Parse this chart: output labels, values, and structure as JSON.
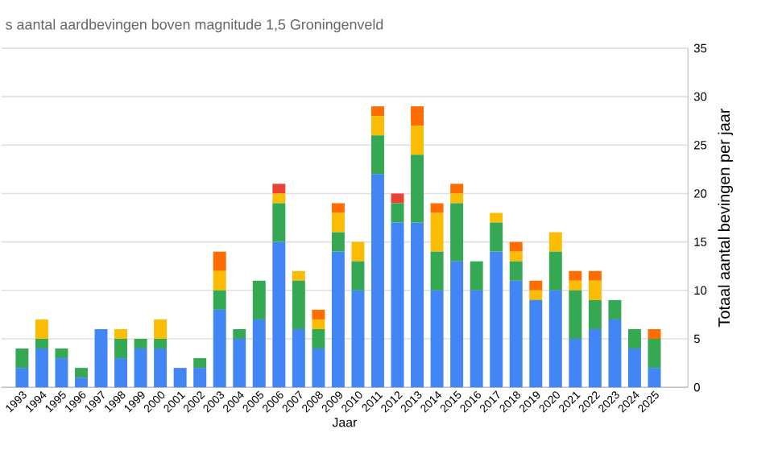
{
  "chart_data": {
    "type": "bar",
    "title": "s aantal aardbevingen boven magnitude 1,5 Groningenveld",
    "xlabel": "Jaar",
    "ylabel": "Totaal aantal bevingen per jaar",
    "categories": [
      "1993",
      "1994",
      "1995",
      "1996",
      "1997",
      "1998",
      "1999",
      "2000",
      "2001",
      "2002",
      "2003",
      "2004",
      "2005",
      "2006",
      "2007",
      "2008",
      "2009",
      "2010",
      "2011",
      "2012",
      "2013",
      "2014",
      "2015",
      "2016",
      "2017",
      "2018",
      "2019",
      "2020",
      "2021",
      "2022",
      "2023",
      "2024",
      "2025"
    ],
    "stacked": true,
    "grid": "y",
    "ylim": [
      0,
      35
    ],
    "yticks": [
      0,
      5,
      10,
      15,
      20,
      25,
      30,
      35
    ],
    "series": [
      {
        "color": "#4285f4",
        "values": [
          2,
          4,
          3,
          1,
          6,
          3,
          4,
          4,
          2,
          2,
          8,
          5,
          7,
          15,
          6,
          4,
          14,
          10,
          22,
          17,
          17,
          10,
          13,
          10,
          14,
          11,
          9,
          10,
          5,
          6,
          7,
          4,
          2
        ]
      },
      {
        "color": "#34a853",
        "values": [
          2,
          1,
          1,
          1,
          0,
          2,
          1,
          1,
          0,
          1,
          2,
          1,
          4,
          4,
          5,
          2,
          2,
          3,
          4,
          2,
          7,
          4,
          6,
          3,
          3,
          2,
          0,
          4,
          5,
          3,
          2,
          2,
          3
        ]
      },
      {
        "color": "#fbbc04",
        "values": [
          0,
          2,
          0,
          0,
          0,
          1,
          0,
          2,
          0,
          0,
          2,
          0,
          0,
          1,
          1,
          1,
          2,
          2,
          2,
          0,
          3,
          4,
          1,
          0,
          1,
          1,
          1,
          2,
          1,
          2,
          0,
          0,
          0
        ]
      },
      {
        "color": "#ff6d01",
        "values": [
          0,
          0,
          0,
          0,
          0,
          0,
          0,
          0,
          0,
          0,
          2,
          0,
          0,
          0,
          0,
          1,
          1,
          0,
          1,
          0,
          2,
          1,
          1,
          0,
          0,
          1,
          1,
          0,
          1,
          1,
          0,
          0,
          1
        ]
      },
      {
        "color": "#ea4335",
        "values": [
          0,
          0,
          0,
          0,
          0,
          0,
          0,
          0,
          0,
          0,
          0,
          0,
          0,
          1,
          0,
          0,
          0,
          0,
          0,
          1,
          0,
          0,
          0,
          0,
          0,
          0,
          0,
          0,
          0,
          0,
          0,
          0,
          0
        ]
      }
    ]
  }
}
